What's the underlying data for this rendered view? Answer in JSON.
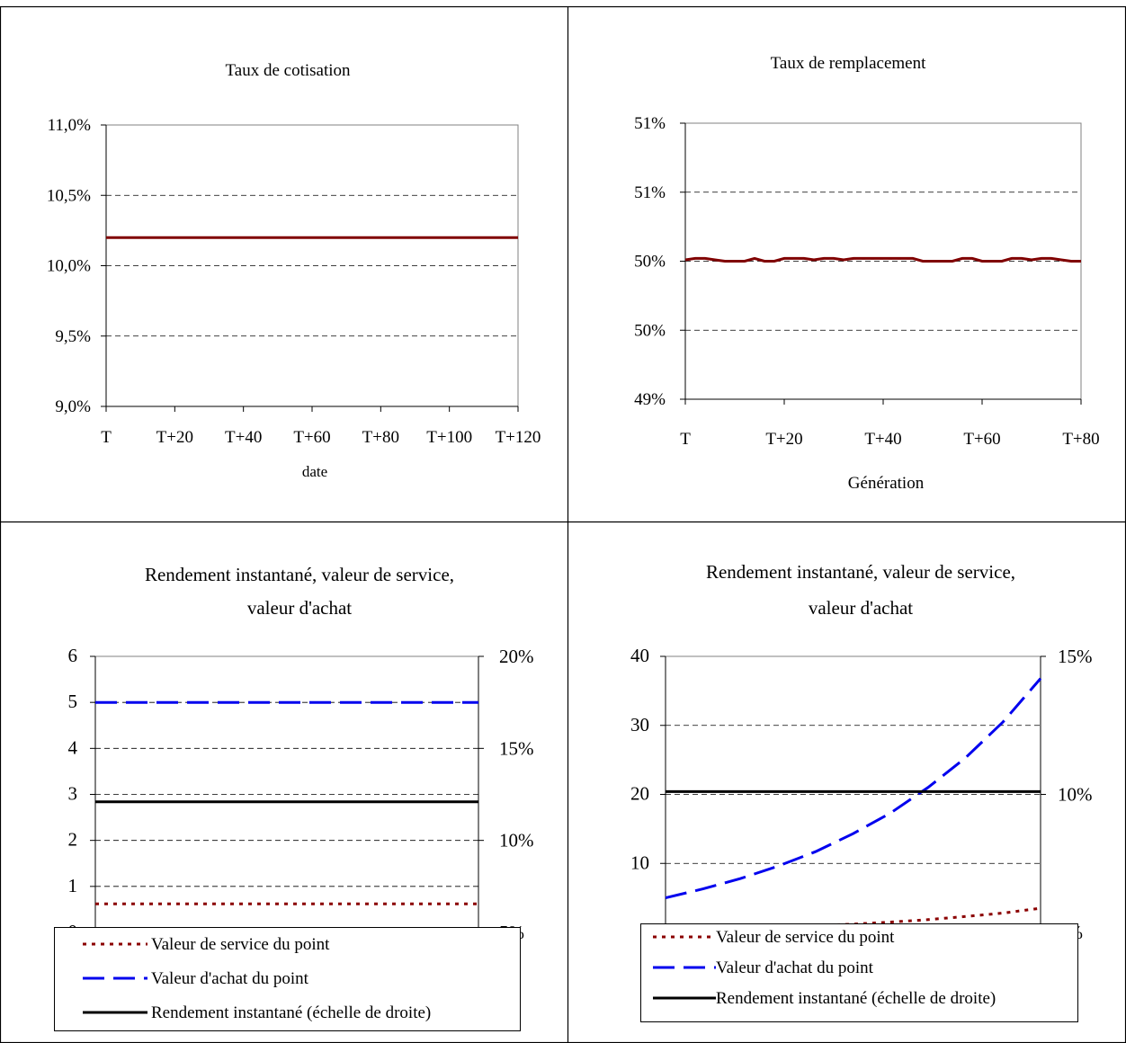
{
  "chart_data": [
    {
      "type": "line",
      "title": "Taux de cotisation",
      "xlabel": "date",
      "ylabel": "",
      "x_tick_labels": [
        "T",
        "T+20",
        "T+40",
        "T+60",
        "T+80",
        "T+100",
        "T+120"
      ],
      "x_range": [
        0,
        120
      ],
      "ylim": [
        9.0,
        11.0
      ],
      "y_tick_labels": [
        "9,0%",
        "9,5%",
        "10,0%",
        "10,5%",
        "11,0%"
      ],
      "y_tick_values": [
        9.0,
        9.5,
        10.0,
        10.5,
        11.0
      ],
      "grid": "horizontal dashed",
      "series": [
        {
          "color": "#800000",
          "style": "solid",
          "x": [
            0,
            120
          ],
          "y": [
            10.2,
            10.2
          ]
        }
      ]
    },
    {
      "type": "line",
      "title": "Taux de remplacement",
      "xlabel": "Génération",
      "ylabel": "",
      "x_tick_labels": [
        "T",
        "T+20",
        "T+40",
        "T+60",
        "T+80"
      ],
      "x_range": [
        0,
        80
      ],
      "ylim": [
        49.0,
        51.0
      ],
      "y_tick_labels": [
        "49%",
        "50%",
        "50%",
        "51%",
        "51%"
      ],
      "y_tick_values": [
        49.0,
        49.5,
        50.0,
        50.5,
        51.0
      ],
      "grid": "horizontal dashed",
      "series": [
        {
          "color": "#800000",
          "style": "solid",
          "x": [
            0,
            2,
            4,
            6,
            8,
            10,
            12,
            14,
            16,
            18,
            20,
            22,
            24,
            26,
            28,
            30,
            32,
            34,
            36,
            38,
            40,
            42,
            44,
            46,
            48,
            50,
            52,
            54,
            56,
            58,
            60,
            62,
            64,
            66,
            68,
            70,
            72,
            74,
            76,
            78,
            80
          ],
          "y": [
            50.01,
            50.02,
            50.02,
            50.01,
            50.0,
            50.0,
            50.0,
            50.02,
            50.0,
            50.0,
            50.02,
            50.02,
            50.02,
            50.01,
            50.02,
            50.02,
            50.01,
            50.02,
            50.02,
            50.02,
            50.02,
            50.02,
            50.02,
            50.02,
            50.0,
            50.0,
            50.0,
            50.0,
            50.02,
            50.02,
            50.0,
            50.0,
            50.0,
            50.02,
            50.02,
            50.01,
            50.02,
            50.02,
            50.01,
            50.0,
            50.0
          ]
        }
      ]
    },
    {
      "type": "line",
      "title": "Rendement instantané, valeur de service, valeur d'achat",
      "title_lines": [
        "Rendement instantané, valeur de service,",
        "valeur d'achat"
      ],
      "xlabel": "",
      "ylabel": "",
      "x_range": [
        0,
        100
      ],
      "ylim": [
        0,
        6
      ],
      "y_tick_labels": [
        "0",
        "1",
        "2",
        "3",
        "4",
        "5",
        "6"
      ],
      "y2lim": [
        5,
        20
      ],
      "y2_tick_labels": [
        "5%",
        "10%",
        "15%",
        "20%"
      ],
      "grid": "horizontal dashed",
      "legend": "bottom",
      "series": [
        {
          "name": "Valeur de service du point",
          "axis": "left",
          "color": "#8b0000",
          "style": "dotted",
          "x": [
            0,
            100
          ],
          "y": [
            0.62,
            0.62
          ]
        },
        {
          "name": "Valeur d'achat du point",
          "axis": "left",
          "color": "#0000ee",
          "style": "dashed",
          "x": [
            0,
            100
          ],
          "y": [
            5.0,
            5.0
          ]
        },
        {
          "name": "Rendement instantané (échelle de droite)",
          "axis": "right",
          "color": "#000000",
          "style": "solid",
          "x": [
            0,
            100
          ],
          "y": [
            12.1,
            12.1
          ]
        }
      ]
    },
    {
      "type": "line",
      "title": "Rendement instantané, valeur de service, valeur d'achat",
      "title_lines": [
        "Rendement instantané, valeur de service,",
        "valeur d'achat"
      ],
      "xlabel": "",
      "ylabel": "",
      "x_range": [
        0,
        100
      ],
      "ylim": [
        0,
        40
      ],
      "y_tick_labels": [
        "0",
        "10",
        "20",
        "30",
        "40"
      ],
      "y2lim": [
        5,
        15
      ],
      "y2_tick_labels": [
        "5%",
        "10%",
        "15%"
      ],
      "grid": "horizontal dashed",
      "legend": "bottom",
      "series": [
        {
          "name": "Valeur de service du point",
          "axis": "left",
          "color": "#8b0000",
          "style": "dotted",
          "x": [
            0,
            10,
            20,
            30,
            40,
            50,
            60,
            70,
            80,
            90,
            100
          ],
          "y": [
            0.5,
            0.6,
            0.7,
            0.85,
            1.0,
            1.2,
            1.5,
            1.85,
            2.3,
            2.8,
            3.5
          ]
        },
        {
          "name": "Valeur d'achat du point",
          "axis": "left",
          "color": "#0000ee",
          "style": "dashed",
          "x": [
            0,
            10,
            20,
            30,
            40,
            50,
            60,
            70,
            80,
            90,
            100
          ],
          "y": [
            5.0,
            6.3,
            7.8,
            9.6,
            11.7,
            14.3,
            17.3,
            21.0,
            25.3,
            30.5,
            36.8
          ]
        },
        {
          "name": "Rendement instantané (échelle de droite)",
          "axis": "right",
          "color": "#000000",
          "style": "solid",
          "x": [
            0,
            100
          ],
          "y": [
            10.1,
            10.1
          ]
        }
      ]
    }
  ]
}
